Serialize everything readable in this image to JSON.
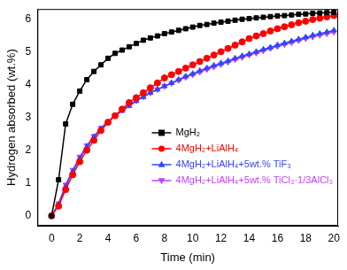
{
  "chart_data": {
    "type": "line",
    "x_label": "Time (min)",
    "y_label": "Hydrogen absorbed (wt.%)",
    "x": [
      0,
      0.5,
      1,
      1.5,
      2,
      2.5,
      3,
      3.5,
      4,
      4.5,
      5,
      5.5,
      6,
      6.5,
      7,
      7.5,
      8,
      8.5,
      9,
      9.5,
      10,
      10.5,
      11,
      11.5,
      12,
      12.5,
      13,
      13.5,
      14,
      14.5,
      15,
      15.5,
      16,
      16.5,
      17,
      17.5,
      18,
      18.5,
      19,
      19.5,
      20
    ],
    "series": [
      {
        "name": "MgH₂",
        "color": "#000000",
        "marker": "square",
        "line_style": "solid",
        "values": [
          0,
          1.1,
          2.8,
          3.4,
          3.8,
          4.15,
          4.4,
          4.6,
          4.8,
          4.95,
          5.05,
          5.15,
          5.25,
          5.35,
          5.42,
          5.48,
          5.55,
          5.6,
          5.65,
          5.7,
          5.75,
          5.8,
          5.83,
          5.87,
          5.9,
          5.93,
          5.96,
          5.99,
          6.01,
          6.03,
          6.05,
          6.07,
          6.09,
          6.1,
          6.12,
          6.14,
          6.15,
          6.17,
          6.18,
          6.19,
          6.2
        ]
      },
      {
        "name": "4MgH₂+LiAlH₄",
        "color": "#ff0000",
        "marker": "circle",
        "line_style": "solid",
        "values": [
          0,
          0.3,
          0.8,
          1.25,
          1.65,
          2.0,
          2.3,
          2.6,
          2.85,
          3.05,
          3.25,
          3.45,
          3.6,
          3.75,
          3.9,
          4.05,
          4.2,
          4.3,
          4.4,
          4.5,
          4.6,
          4.7,
          4.8,
          4.9,
          5.0,
          5.1,
          5.2,
          5.3,
          5.4,
          5.48,
          5.55,
          5.63,
          5.7,
          5.76,
          5.82,
          5.88,
          5.93,
          5.98,
          6.02,
          6.06,
          6.1
        ]
      },
      {
        "name": "4MgH₂+LiAlH₄+5wt.% TiF₃",
        "color": "#3344ff",
        "marker": "triangle",
        "line_style": "solid",
        "values": [
          0,
          0.35,
          0.9,
          1.35,
          1.75,
          2.1,
          2.4,
          2.65,
          2.85,
          3.05,
          3.2,
          3.35,
          3.5,
          3.62,
          3.75,
          3.85,
          3.95,
          4.05,
          4.15,
          4.25,
          4.33,
          4.42,
          4.5,
          4.58,
          4.65,
          4.72,
          4.8,
          4.87,
          4.93,
          5.0,
          5.07,
          5.13,
          5.2,
          5.26,
          5.32,
          5.38,
          5.44,
          5.5,
          5.55,
          5.6,
          5.65
        ]
      },
      {
        "name": "4MgH₂+LiAlH₄+5wt.% TiCl₃·1/3AlCl₃",
        "color": "#c040ff",
        "marker": "triangle-down",
        "line_style": "solid",
        "values": [
          0,
          0.38,
          0.95,
          1.4,
          1.8,
          2.15,
          2.43,
          2.68,
          2.88,
          3.07,
          3.22,
          3.37,
          3.51,
          3.63,
          3.75,
          3.85,
          3.95,
          4.04,
          4.13,
          4.22,
          4.3,
          4.38,
          4.46,
          4.54,
          4.61,
          4.68,
          4.76,
          4.83,
          4.9,
          4.96,
          5.03,
          5.1,
          5.16,
          5.22,
          5.28,
          5.34,
          5.4,
          5.45,
          5.5,
          5.55,
          5.6
        ]
      }
    ],
    "xlim": [
      -1,
      20.3
    ],
    "ylim": [
      -0.3,
      6.3
    ],
    "xticks": [
      0,
      2,
      4,
      6,
      8,
      10,
      12,
      14,
      16,
      18,
      20
    ],
    "yticks": [
      0,
      1,
      2,
      3,
      4,
      5,
      6
    ],
    "grid": false,
    "legend": "lower right"
  }
}
